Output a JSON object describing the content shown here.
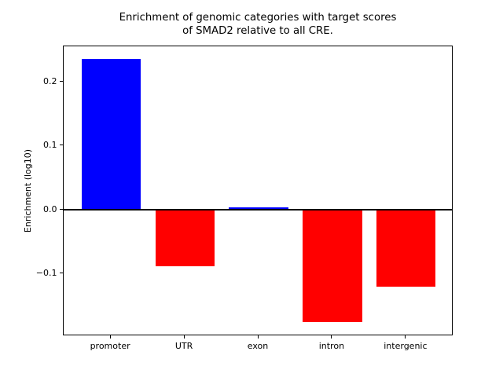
{
  "chart_data": {
    "type": "bar",
    "title": "Enrichment of genomic categories with target scores\nof SMAD2 relative to all CRE.",
    "title_lines": [
      "Enrichment of genomic categories with target scores",
      "of SMAD2 relative to all CRE."
    ],
    "xlabel": "",
    "ylabel": "Enrichment (log10)",
    "categories": [
      "promoter",
      "UTR",
      "exon",
      "intron",
      "intergenic"
    ],
    "values": [
      0.236,
      -0.089,
      0.004,
      -0.176,
      -0.121
    ],
    "bar_colors": [
      "#0000ff",
      "#ff0000",
      "#0000ff",
      "#ff0000",
      "#ff0000"
    ],
    "positive_color": "#0000ff",
    "negative_color": "#ff0000",
    "yticks": [
      {
        "value": 0.2,
        "label": "0.2"
      },
      {
        "value": 0.1,
        "label": "0.1"
      },
      {
        "value": 0.0,
        "label": "0.0"
      },
      {
        "value": -0.1,
        "label": "−0.1"
      }
    ],
    "ylim": [
      -0.198,
      0.256
    ],
    "xlim": [
      -0.64,
      4.64
    ],
    "bar_width_fraction": 0.8,
    "grid": false,
    "legend": null,
    "zero_line": true,
    "zero_line_color": "#000000",
    "axis_color": "#000000",
    "background_color": "#ffffff"
  }
}
